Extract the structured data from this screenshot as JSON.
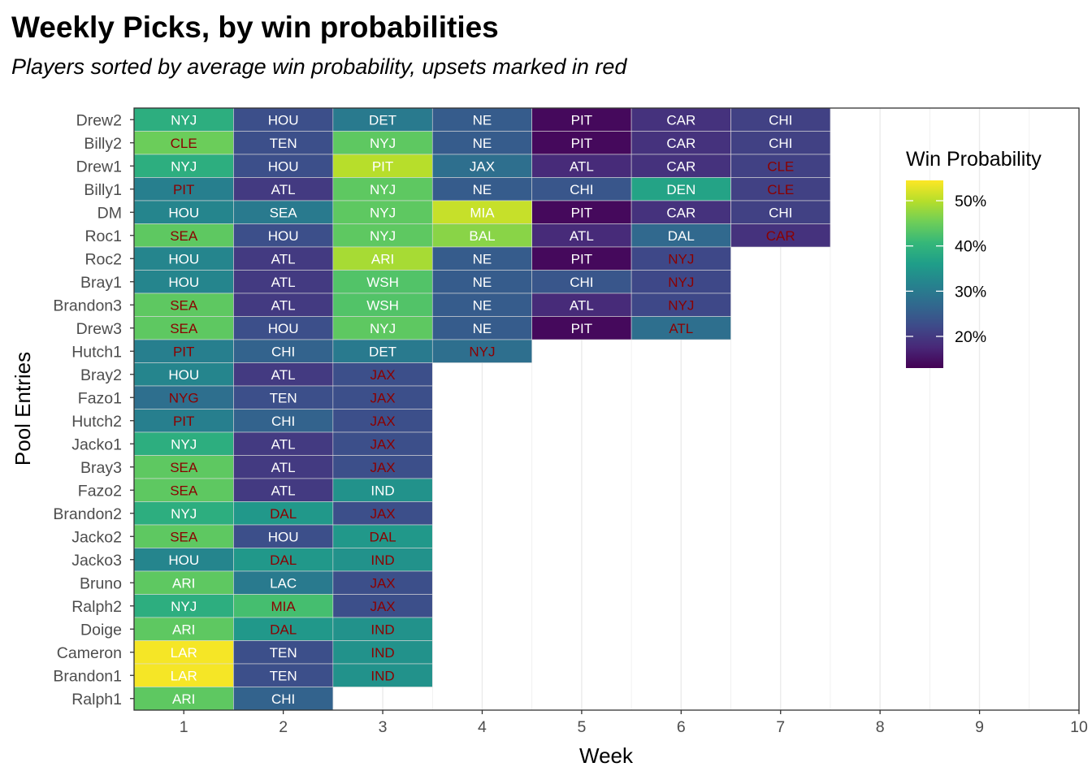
{
  "chart_data": {
    "type": "heatmap",
    "title": "Weekly Picks, by win probabilities",
    "subtitle": "Players sorted by average win probability, upsets marked in red",
    "xlabel": "Week",
    "ylabel": "Pool Entries",
    "x_ticks": [
      "1",
      "2",
      "3",
      "4",
      "5",
      "6",
      "7",
      "8",
      "9",
      "10"
    ],
    "xlim": [
      0.5,
      10
    ],
    "colors": {
      "upset_text": "#8B0000",
      "normal_text": "#ffffff",
      "grid": "#ebebeb",
      "panel_border": "#333333",
      "cell_border": "#dcdcdc"
    },
    "legend": {
      "title": "Win Probability",
      "placement": "right",
      "min": 0.13,
      "max": 0.545,
      "ticks": [
        {
          "value": 0.2,
          "label": "20%"
        },
        {
          "value": 0.3,
          "label": "30%"
        },
        {
          "value": 0.4,
          "label": "40%"
        },
        {
          "value": 0.5,
          "label": "50%"
        }
      ]
    },
    "rows": [
      {
        "name": "Drew2",
        "picks": [
          {
            "week": 1,
            "team": "NYJ",
            "prob": 0.39,
            "upset": false
          },
          {
            "week": 2,
            "team": "HOU",
            "prob": 0.23,
            "upset": false
          },
          {
            "week": 3,
            "team": "DET",
            "prob": 0.3,
            "upset": false
          },
          {
            "week": 4,
            "team": "NE",
            "prob": 0.25,
            "upset": false
          },
          {
            "week": 5,
            "team": "PIT",
            "prob": 0.14,
            "upset": false
          },
          {
            "week": 6,
            "team": "CAR",
            "prob": 0.19,
            "upset": false
          },
          {
            "week": 7,
            "team": "CHI",
            "prob": 0.21,
            "upset": false
          }
        ]
      },
      {
        "name": "Billy2",
        "picks": [
          {
            "week": 1,
            "team": "CLE",
            "prob": 0.45,
            "upset": true
          },
          {
            "week": 2,
            "team": "TEN",
            "prob": 0.23,
            "upset": false
          },
          {
            "week": 3,
            "team": "NYJ",
            "prob": 0.44,
            "upset": false
          },
          {
            "week": 4,
            "team": "NE",
            "prob": 0.25,
            "upset": false
          },
          {
            "week": 5,
            "team": "PIT",
            "prob": 0.14,
            "upset": false
          },
          {
            "week": 6,
            "team": "CAR",
            "prob": 0.19,
            "upset": false
          },
          {
            "week": 7,
            "team": "CHI",
            "prob": 0.21,
            "upset": false
          }
        ]
      },
      {
        "name": "Drew1",
        "picks": [
          {
            "week": 1,
            "team": "NYJ",
            "prob": 0.39,
            "upset": false
          },
          {
            "week": 2,
            "team": "HOU",
            "prob": 0.23,
            "upset": false
          },
          {
            "week": 3,
            "team": "PIT",
            "prob": 0.5,
            "upset": false
          },
          {
            "week": 4,
            "team": "JAX",
            "prob": 0.28,
            "upset": false
          },
          {
            "week": 5,
            "team": "ATL",
            "prob": 0.18,
            "upset": false
          },
          {
            "week": 6,
            "team": "CAR",
            "prob": 0.19,
            "upset": false
          },
          {
            "week": 7,
            "team": "CLE",
            "prob": 0.21,
            "upset": true
          }
        ]
      },
      {
        "name": "Billy1",
        "picks": [
          {
            "week": 1,
            "team": "PIT",
            "prob": 0.31,
            "upset": true
          },
          {
            "week": 2,
            "team": "ATL",
            "prob": 0.2,
            "upset": false
          },
          {
            "week": 3,
            "team": "NYJ",
            "prob": 0.44,
            "upset": false
          },
          {
            "week": 4,
            "team": "NE",
            "prob": 0.25,
            "upset": false
          },
          {
            "week": 5,
            "team": "CHI",
            "prob": 0.24,
            "upset": false
          },
          {
            "week": 6,
            "team": "DEN",
            "prob": 0.37,
            "upset": false
          },
          {
            "week": 7,
            "team": "CLE",
            "prob": 0.21,
            "upset": true
          }
        ]
      },
      {
        "name": "DM",
        "picks": [
          {
            "week": 1,
            "team": "HOU",
            "prob": 0.32,
            "upset": false
          },
          {
            "week": 2,
            "team": "SEA",
            "prob": 0.3,
            "upset": false
          },
          {
            "week": 3,
            "team": "NYJ",
            "prob": 0.44,
            "upset": false
          },
          {
            "week": 4,
            "team": "MIA",
            "prob": 0.51,
            "upset": false
          },
          {
            "week": 5,
            "team": "PIT",
            "prob": 0.14,
            "upset": false
          },
          {
            "week": 6,
            "team": "CAR",
            "prob": 0.19,
            "upset": false
          },
          {
            "week": 7,
            "team": "CHI",
            "prob": 0.21,
            "upset": false
          }
        ]
      },
      {
        "name": "Roc1",
        "picks": [
          {
            "week": 1,
            "team": "SEA",
            "prob": 0.44,
            "upset": true
          },
          {
            "week": 2,
            "team": "HOU",
            "prob": 0.23,
            "upset": false
          },
          {
            "week": 3,
            "team": "NYJ",
            "prob": 0.44,
            "upset": false
          },
          {
            "week": 4,
            "team": "BAL",
            "prob": 0.47,
            "upset": false
          },
          {
            "week": 5,
            "team": "ATL",
            "prob": 0.18,
            "upset": false
          },
          {
            "week": 6,
            "team": "DAL",
            "prob": 0.27,
            "upset": false
          },
          {
            "week": 7,
            "team": "CAR",
            "prob": 0.19,
            "upset": true
          }
        ]
      },
      {
        "name": "Roc2",
        "picks": [
          {
            "week": 1,
            "team": "HOU",
            "prob": 0.32,
            "upset": false
          },
          {
            "week": 2,
            "team": "ATL",
            "prob": 0.2,
            "upset": false
          },
          {
            "week": 3,
            "team": "ARI",
            "prob": 0.49,
            "upset": false
          },
          {
            "week": 4,
            "team": "NE",
            "prob": 0.25,
            "upset": false
          },
          {
            "week": 5,
            "team": "PIT",
            "prob": 0.14,
            "upset": false
          },
          {
            "week": 6,
            "team": "NYJ",
            "prob": 0.22,
            "upset": true
          }
        ]
      },
      {
        "name": "Bray1",
        "picks": [
          {
            "week": 1,
            "team": "HOU",
            "prob": 0.32,
            "upset": false
          },
          {
            "week": 2,
            "team": "ATL",
            "prob": 0.2,
            "upset": false
          },
          {
            "week": 3,
            "team": "WSH",
            "prob": 0.43,
            "upset": false
          },
          {
            "week": 4,
            "team": "NE",
            "prob": 0.25,
            "upset": false
          },
          {
            "week": 5,
            "team": "CHI",
            "prob": 0.24,
            "upset": false
          },
          {
            "week": 6,
            "team": "NYJ",
            "prob": 0.22,
            "upset": true
          }
        ]
      },
      {
        "name": "Brandon3",
        "picks": [
          {
            "week": 1,
            "team": "SEA",
            "prob": 0.44,
            "upset": true
          },
          {
            "week": 2,
            "team": "ATL",
            "prob": 0.2,
            "upset": false
          },
          {
            "week": 3,
            "team": "WSH",
            "prob": 0.43,
            "upset": false
          },
          {
            "week": 4,
            "team": "NE",
            "prob": 0.25,
            "upset": false
          },
          {
            "week": 5,
            "team": "ATL",
            "prob": 0.18,
            "upset": false
          },
          {
            "week": 6,
            "team": "NYJ",
            "prob": 0.22,
            "upset": true
          }
        ]
      },
      {
        "name": "Drew3",
        "picks": [
          {
            "week": 1,
            "team": "SEA",
            "prob": 0.44,
            "upset": true
          },
          {
            "week": 2,
            "team": "HOU",
            "prob": 0.23,
            "upset": false
          },
          {
            "week": 3,
            "team": "NYJ",
            "prob": 0.44,
            "upset": false
          },
          {
            "week": 4,
            "team": "NE",
            "prob": 0.25,
            "upset": false
          },
          {
            "week": 5,
            "team": "PIT",
            "prob": 0.14,
            "upset": false
          },
          {
            "week": 6,
            "team": "ATL",
            "prob": 0.28,
            "upset": true
          }
        ]
      },
      {
        "name": "Hutch1",
        "picks": [
          {
            "week": 1,
            "team": "PIT",
            "prob": 0.31,
            "upset": true
          },
          {
            "week": 2,
            "team": "CHI",
            "prob": 0.26,
            "upset": false
          },
          {
            "week": 3,
            "team": "DET",
            "prob": 0.3,
            "upset": false
          },
          {
            "week": 4,
            "team": "NYJ",
            "prob": 0.28,
            "upset": true
          }
        ]
      },
      {
        "name": "Bray2",
        "picks": [
          {
            "week": 1,
            "team": "HOU",
            "prob": 0.32,
            "upset": false
          },
          {
            "week": 2,
            "team": "ATL",
            "prob": 0.2,
            "upset": false
          },
          {
            "week": 3,
            "team": "JAX",
            "prob": 0.23,
            "upset": true
          }
        ]
      },
      {
        "name": "Fazo1",
        "picks": [
          {
            "week": 1,
            "team": "NYG",
            "prob": 0.28,
            "upset": true
          },
          {
            "week": 2,
            "team": "TEN",
            "prob": 0.23,
            "upset": false
          },
          {
            "week": 3,
            "team": "JAX",
            "prob": 0.23,
            "upset": true
          }
        ]
      },
      {
        "name": "Hutch2",
        "picks": [
          {
            "week": 1,
            "team": "PIT",
            "prob": 0.31,
            "upset": true
          },
          {
            "week": 2,
            "team": "CHI",
            "prob": 0.26,
            "upset": false
          },
          {
            "week": 3,
            "team": "JAX",
            "prob": 0.23,
            "upset": true
          }
        ]
      },
      {
        "name": "Jacko1",
        "picks": [
          {
            "week": 1,
            "team": "NYJ",
            "prob": 0.39,
            "upset": false
          },
          {
            "week": 2,
            "team": "ATL",
            "prob": 0.2,
            "upset": false
          },
          {
            "week": 3,
            "team": "JAX",
            "prob": 0.23,
            "upset": true
          }
        ]
      },
      {
        "name": "Bray3",
        "picks": [
          {
            "week": 1,
            "team": "SEA",
            "prob": 0.44,
            "upset": true
          },
          {
            "week": 2,
            "team": "ATL",
            "prob": 0.2,
            "upset": false
          },
          {
            "week": 3,
            "team": "JAX",
            "prob": 0.23,
            "upset": true
          }
        ]
      },
      {
        "name": "Fazo2",
        "picks": [
          {
            "week": 1,
            "team": "SEA",
            "prob": 0.44,
            "upset": true
          },
          {
            "week": 2,
            "team": "ATL",
            "prob": 0.2,
            "upset": false
          },
          {
            "week": 3,
            "team": "IND",
            "prob": 0.34,
            "upset": false
          }
        ]
      },
      {
        "name": "Brandon2",
        "picks": [
          {
            "week": 1,
            "team": "NYJ",
            "prob": 0.39,
            "upset": false
          },
          {
            "week": 2,
            "team": "DAL",
            "prob": 0.35,
            "upset": true
          },
          {
            "week": 3,
            "team": "JAX",
            "prob": 0.23,
            "upset": true
          }
        ]
      },
      {
        "name": "Jacko2",
        "picks": [
          {
            "week": 1,
            "team": "SEA",
            "prob": 0.44,
            "upset": true
          },
          {
            "week": 2,
            "team": "HOU",
            "prob": 0.23,
            "upset": false
          },
          {
            "week": 3,
            "team": "DAL",
            "prob": 0.35,
            "upset": true
          }
        ]
      },
      {
        "name": "Jacko3",
        "picks": [
          {
            "week": 1,
            "team": "HOU",
            "prob": 0.32,
            "upset": false
          },
          {
            "week": 2,
            "team": "DAL",
            "prob": 0.35,
            "upset": true
          },
          {
            "week": 3,
            "team": "IND",
            "prob": 0.34,
            "upset": true
          }
        ]
      },
      {
        "name": "Bruno",
        "picks": [
          {
            "week": 1,
            "team": "ARI",
            "prob": 0.44,
            "upset": false
          },
          {
            "week": 2,
            "team": "LAC",
            "prob": 0.3,
            "upset": false
          },
          {
            "week": 3,
            "team": "JAX",
            "prob": 0.23,
            "upset": true
          }
        ]
      },
      {
        "name": "Ralph2",
        "picks": [
          {
            "week": 1,
            "team": "NYJ",
            "prob": 0.39,
            "upset": false
          },
          {
            "week": 2,
            "team": "MIA",
            "prob": 0.42,
            "upset": true
          },
          {
            "week": 3,
            "team": "JAX",
            "prob": 0.23,
            "upset": true
          }
        ]
      },
      {
        "name": "Doige",
        "picks": [
          {
            "week": 1,
            "team": "ARI",
            "prob": 0.44,
            "upset": false
          },
          {
            "week": 2,
            "team": "DAL",
            "prob": 0.35,
            "upset": true
          },
          {
            "week": 3,
            "team": "IND",
            "prob": 0.34,
            "upset": true
          }
        ]
      },
      {
        "name": "Cameron",
        "picks": [
          {
            "week": 1,
            "team": "LAR",
            "prob": 0.54,
            "upset": false
          },
          {
            "week": 2,
            "team": "TEN",
            "prob": 0.23,
            "upset": false
          },
          {
            "week": 3,
            "team": "IND",
            "prob": 0.34,
            "upset": true
          }
        ]
      },
      {
        "name": "Brandon1",
        "picks": [
          {
            "week": 1,
            "team": "LAR",
            "prob": 0.54,
            "upset": false
          },
          {
            "week": 2,
            "team": "TEN",
            "prob": 0.23,
            "upset": false
          },
          {
            "week": 3,
            "team": "IND",
            "prob": 0.34,
            "upset": true
          }
        ]
      },
      {
        "name": "Ralph1",
        "picks": [
          {
            "week": 1,
            "team": "ARI",
            "prob": 0.44,
            "upset": false
          },
          {
            "week": 2,
            "team": "CHI",
            "prob": 0.26,
            "upset": false
          }
        ]
      }
    ]
  }
}
